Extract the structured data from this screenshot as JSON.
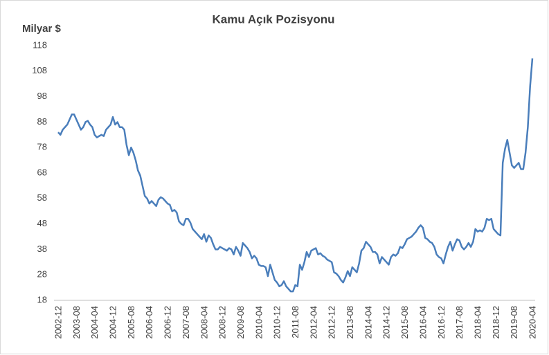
{
  "chart_data": {
    "type": "line",
    "title": "Kamu Açık Pozisyonu",
    "y_label": "Milyar $",
    "categories": [
      "2002-12",
      null,
      null,
      null,
      null,
      null,
      null,
      null,
      "2003-08",
      null,
      null,
      null,
      null,
      null,
      null,
      null,
      "2004-04",
      null,
      null,
      null,
      null,
      null,
      null,
      null,
      "2004-12",
      null,
      null,
      null,
      null,
      null,
      null,
      null,
      "2005-08",
      null,
      null,
      null,
      null,
      null,
      null,
      null,
      "2006-04",
      null,
      null,
      null,
      null,
      null,
      null,
      null,
      "2006-12",
      null,
      null,
      null,
      null,
      null,
      null,
      null,
      "2007-08",
      null,
      null,
      null,
      null,
      null,
      null,
      null,
      "2008-04",
      null,
      null,
      null,
      null,
      null,
      null,
      null,
      "2008-12",
      null,
      null,
      null,
      null,
      null,
      null,
      null,
      "2009-08",
      null,
      null,
      null,
      null,
      null,
      null,
      null,
      "2010-04",
      null,
      null,
      null,
      null,
      null,
      null,
      null,
      "2010-12",
      null,
      null,
      null,
      null,
      null,
      null,
      null,
      "2011-08",
      null,
      null,
      null,
      null,
      null,
      null,
      null,
      "2012-04",
      null,
      null,
      null,
      null,
      null,
      null,
      null,
      "2012-12",
      null,
      null,
      null,
      null,
      null,
      null,
      null,
      "2013-08",
      null,
      null,
      null,
      null,
      null,
      null,
      null,
      "2014-04",
      null,
      null,
      null,
      null,
      null,
      null,
      null,
      "2014-12",
      null,
      null,
      null,
      null,
      null,
      null,
      null,
      "2015-08",
      null,
      null,
      null,
      null,
      null,
      null,
      null,
      "2016-04",
      null,
      null,
      null,
      null,
      null,
      null,
      null,
      "2016-12",
      null,
      null,
      null,
      null,
      null,
      null,
      null,
      "2017-08",
      null,
      null,
      null,
      null,
      null,
      null,
      null,
      "2018-04",
      null,
      null,
      null,
      null,
      null,
      null,
      null,
      "2018-12",
      null,
      null,
      null,
      null,
      null,
      null,
      null,
      "2019-08",
      null,
      null,
      null,
      null,
      null,
      null,
      null,
      "2020-04"
    ],
    "series": [
      {
        "name": "Kamu Açık Pozisyonu",
        "color": "#4a7ebb",
        "values": [
          84,
          83,
          85,
          86,
          87,
          89,
          91,
          91,
          89,
          87,
          85,
          86,
          88,
          88.5,
          87,
          86,
          83,
          82,
          82.5,
          83,
          82.5,
          85,
          86,
          87,
          90,
          87,
          88,
          86,
          86,
          85,
          79,
          75,
          78,
          76,
          73,
          69,
          67,
          63,
          59,
          58,
          56,
          57,
          56,
          55,
          57.5,
          58.5,
          58,
          57,
          56,
          55.5,
          53,
          53.5,
          52.5,
          49,
          48,
          47.5,
          50,
          50,
          48.5,
          46,
          45,
          44,
          43,
          42,
          44,
          41,
          43.5,
          42.5,
          40,
          38,
          38,
          39,
          38.5,
          38,
          37.5,
          38.5,
          38,
          36,
          39,
          37.5,
          35.5,
          40.5,
          39.5,
          38.5,
          37,
          34.5,
          35.5,
          34.5,
          32,
          31.5,
          31.5,
          31,
          27.5,
          32,
          29,
          26,
          25,
          23.5,
          24,
          25.5,
          23.5,
          22.5,
          21.5,
          21.5,
          24,
          23.5,
          32,
          30,
          33,
          37,
          35,
          37.5,
          38,
          38.5,
          36,
          36.5,
          35.5,
          35,
          34,
          33.5,
          33,
          29,
          28.5,
          27.5,
          26,
          25,
          27,
          29.5,
          27.5,
          31,
          30,
          29,
          32.5,
          37.5,
          38.5,
          41,
          40,
          39,
          37,
          37,
          36,
          32.5,
          35,
          34,
          33,
          32,
          35,
          36,
          35.5,
          36.5,
          39,
          38.5,
          40,
          42,
          42.5,
          43,
          44,
          45,
          46.5,
          47.5,
          46.5,
          42.5,
          42,
          41,
          40.5,
          39,
          36,
          35,
          34.5,
          32.5,
          36,
          39,
          41,
          37.5,
          40,
          42,
          41.5,
          39,
          38,
          39,
          40.5,
          39,
          41,
          46,
          45,
          45.5,
          45,
          46.5,
          50,
          49.5,
          50,
          46,
          45,
          44,
          43.5,
          72,
          77.5,
          81,
          76,
          71,
          70,
          71,
          72,
          69.5,
          69.5,
          76,
          86,
          102,
          113
        ]
      }
    ],
    "ylim": [
      18,
      118
    ],
    "yticks": [
      18,
      28,
      38,
      48,
      58,
      68,
      78,
      88,
      98,
      108,
      118
    ],
    "grid": false
  }
}
